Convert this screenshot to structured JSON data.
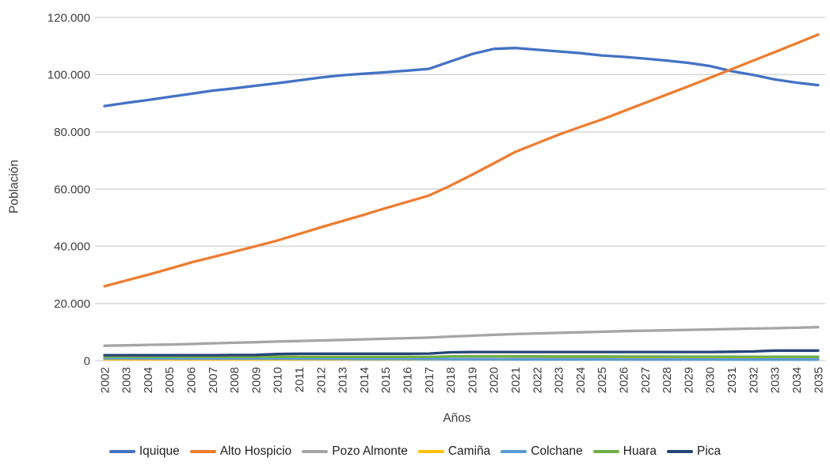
{
  "chart_data": {
    "type": "line",
    "title": "",
    "xlabel": "Años",
    "ylabel": "Población",
    "x": [
      2002,
      2003,
      2004,
      2005,
      2006,
      2007,
      2008,
      2009,
      2010,
      2011,
      2012,
      2013,
      2014,
      2015,
      2016,
      2017,
      2018,
      2019,
      2020,
      2021,
      2022,
      2023,
      2024,
      2025,
      2026,
      2027,
      2028,
      2029,
      2030,
      2031,
      2032,
      2033,
      2034,
      2035
    ],
    "ylim": [
      0,
      120000
    ],
    "y_ticks": [
      {
        "value": 0,
        "label": "0"
      },
      {
        "value": 20000,
        "label": "20.000"
      },
      {
        "value": 40000,
        "label": "40.000"
      },
      {
        "value": 60000,
        "label": "60.000"
      },
      {
        "value": 80000,
        "label": "80.000"
      },
      {
        "value": 100000,
        "label": "100.000"
      },
      {
        "value": 120000,
        "label": "120.000"
      }
    ],
    "grid": true,
    "grid_color": "#d9d9d9",
    "legend_position": "bottom",
    "series": [
      {
        "name": "Iquique",
        "color": "#4472C4",
        "values": [
          89000,
          90100,
          91100,
          92200,
          93300,
          94400,
          95200,
          96100,
          97000,
          98000,
          99000,
          99800,
          100300,
          100800,
          101400,
          102000,
          104600,
          107200,
          109000,
          109300,
          108700,
          108100,
          107500,
          106700,
          106200,
          105600,
          104900,
          104100,
          103000,
          101200,
          99900,
          98300,
          97200,
          96300
        ]
      },
      {
        "name": "Alto Hospicio",
        "color": "#ED7D31",
        "values": [
          26000,
          28000,
          30000,
          32100,
          34300,
          36200,
          38100,
          40000,
          42000,
          44300,
          46600,
          48800,
          51000,
          53300,
          55500,
          57700,
          61200,
          65000,
          69000,
          73000,
          76000,
          79000,
          81700,
          84300,
          87200,
          90100,
          93000,
          95900,
          98900,
          101900,
          104900,
          107900,
          110900,
          114000
        ]
      },
      {
        "name": "Pozo Almonte",
        "color": "#A5A5A5",
        "values": [
          5200,
          5350,
          5500,
          5650,
          5800,
          6050,
          6250,
          6450,
          6650,
          6850,
          7050,
          7250,
          7450,
          7650,
          7850,
          8050,
          8400,
          8700,
          9000,
          9300,
          9500,
          9700,
          9900,
          10100,
          10300,
          10450,
          10600,
          10750,
          10900,
          11050,
          11200,
          11350,
          11500,
          11700
        ]
      },
      {
        "name": "Camiña",
        "color": "#FFC000",
        "values": [
          500,
          500,
          500,
          500,
          500,
          500,
          500,
          500,
          500,
          500,
          500,
          500,
          500,
          500,
          510,
          520,
          520,
          520,
          520,
          520,
          510,
          510,
          510,
          510,
          500,
          500,
          500,
          500,
          490,
          490,
          490,
          480,
          480,
          480
        ]
      },
      {
        "name": "Colchane",
        "color": "#5B9BD5",
        "values": [
          800,
          790,
          780,
          770,
          760,
          750,
          730,
          710,
          690,
          670,
          650,
          630,
          610,
          590,
          570,
          550,
          530,
          510,
          490,
          475,
          460,
          450,
          440,
          430,
          425,
          420,
          415,
          410,
          405,
          400,
          395,
          390,
          385,
          380
        ]
      },
      {
        "name": "Huara",
        "color": "#70AD47",
        "values": [
          1400,
          1390,
          1380,
          1370,
          1360,
          1350,
          1350,
          1340,
          1330,
          1320,
          1310,
          1300,
          1300,
          1290,
          1290,
          1280,
          1500,
          1490,
          1480,
          1470,
          1460,
          1450,
          1440,
          1430,
          1420,
          1410,
          1400,
          1390,
          1380,
          1370,
          1360,
          1350,
          1340,
          1330
        ]
      },
      {
        "name": "Pica",
        "color": "#264478",
        "values": [
          1900,
          1900,
          1900,
          1900,
          1900,
          1900,
          1950,
          2000,
          2300,
          2400,
          2400,
          2400,
          2400,
          2400,
          2400,
          2450,
          2900,
          3000,
          3000,
          3000,
          3000,
          3000,
          3000,
          3000,
          3000,
          3000,
          3000,
          3000,
          3000,
          3100,
          3200,
          3500,
          3500,
          3500
        ]
      }
    ]
  }
}
